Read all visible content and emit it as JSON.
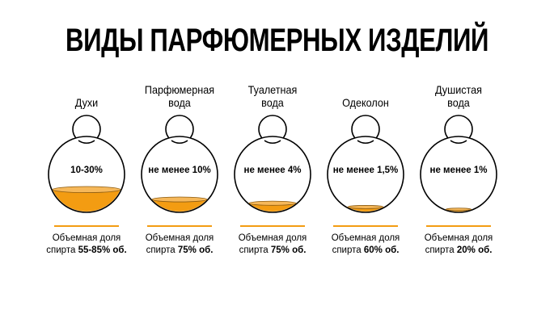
{
  "title": "ВИДЫ ПАРФЮМЕРНЫХ ИЗДЕЛИЙ",
  "colors": {
    "liquid": "#f39c12",
    "liquid_light": "#f6b85a",
    "rule": "#f39c12",
    "outline": "#000000"
  },
  "items": [
    {
      "name": [
        "Духи"
      ],
      "concentration": "10-30%",
      "alcohol_label": "Объемная доля",
      "alcohol_prefix": "спирта",
      "alcohol_value": "55-85% об.",
      "fill_level": 0.3
    },
    {
      "name": [
        "Парфюмерная",
        "вода"
      ],
      "concentration": "не менее 10%",
      "alcohol_label": "Объемная доля",
      "alcohol_prefix": "спирта",
      "alcohol_value": "75% об.",
      "fill_level": 0.17
    },
    {
      "name": [
        "Туалетная",
        "вода"
      ],
      "concentration": "не менее 4%",
      "alcohol_label": "Объемная доля",
      "alcohol_prefix": "спирта",
      "alcohol_value": "75% об.",
      "fill_level": 0.12
    },
    {
      "name": [
        "Одеколон"
      ],
      "concentration": "не менее 1,5%",
      "alcohol_label": "Объемная доля",
      "alcohol_prefix": "спирта",
      "alcohol_value": "60% об.",
      "fill_level": 0.07
    },
    {
      "name": [
        "Душистая",
        "вода"
      ],
      "concentration": "не менее 1%",
      "alcohol_label": "Объемная доля",
      "alcohol_prefix": "спирта",
      "alcohol_value": "20% об.",
      "fill_level": 0.04
    }
  ]
}
